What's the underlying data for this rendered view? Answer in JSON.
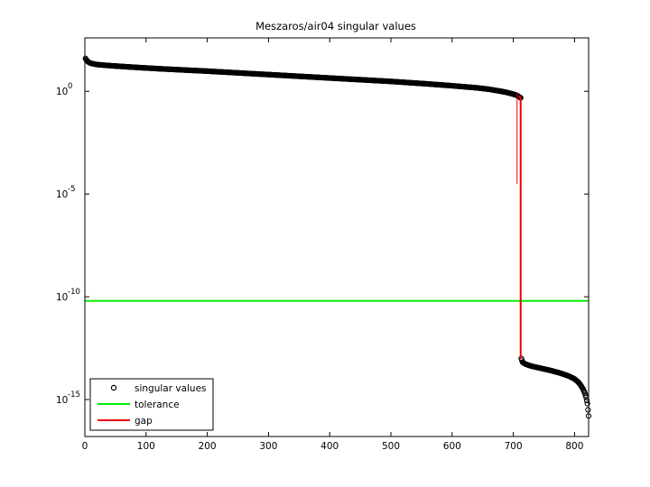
{
  "chart_data": {
    "type": "scatter",
    "title": "Meszaros/air04 singular values",
    "xlabel": "",
    "ylabel": "",
    "xscale": "linear",
    "yscale": "log",
    "xlim": [
      0,
      823
    ],
    "ylim_log10": [
      -16.8,
      2.6
    ],
    "grid": false,
    "legend_position": "bottom-left",
    "x_ticks": [
      {
        "value": 0,
        "label": "0"
      },
      {
        "value": 100,
        "label": "100"
      },
      {
        "value": 200,
        "label": "200"
      },
      {
        "value": 300,
        "label": "300"
      },
      {
        "value": 400,
        "label": "400"
      },
      {
        "value": 500,
        "label": "500"
      },
      {
        "value": 600,
        "label": "600"
      },
      {
        "value": 700,
        "label": "700"
      },
      {
        "value": 800,
        "label": "800"
      }
    ],
    "y_ticks": [
      {
        "log10": 0,
        "base": "10",
        "exp": "0"
      },
      {
        "log10": -5,
        "base": "10",
        "exp": "-5"
      },
      {
        "log10": -10,
        "base": "10",
        "exp": "-10"
      },
      {
        "log10": -15,
        "base": "10",
        "exp": "-15"
      }
    ],
    "series": [
      {
        "name": "singular values",
        "style": "markers",
        "color": "#000000",
        "x": [
          1,
          3,
          6,
          10,
          20,
          40,
          80,
          120,
          160,
          200,
          260,
          320,
          380,
          440,
          500,
          560,
          600,
          640,
          660,
          680,
          690,
          700,
          705,
          708,
          710,
          711,
          712,
          713,
          715,
          720,
          730,
          745,
          760,
          775,
          790,
          800,
          806,
          810,
          814,
          817,
          819,
          821,
          823
        ],
        "log10_values": [
          1.6,
          1.5,
          1.42,
          1.36,
          1.3,
          1.25,
          1.17,
          1.1,
          1.04,
          0.98,
          0.88,
          0.78,
          0.68,
          0.58,
          0.48,
          0.36,
          0.27,
          0.17,
          0.1,
          0.0,
          -0.06,
          -0.14,
          -0.19,
          -0.24,
          -0.28,
          -0.3,
          -0.32,
          -13.0,
          -13.18,
          -13.28,
          -13.38,
          -13.48,
          -13.58,
          -13.7,
          -13.85,
          -14.0,
          -14.15,
          -14.3,
          -14.5,
          -14.7,
          -14.9,
          -15.2,
          -15.8
        ]
      },
      {
        "name": "tolerance",
        "style": "line",
        "color": "#00ee00",
        "log10_value": -10.2
      },
      {
        "name": "gap",
        "style": "line",
        "color": "#ee0000",
        "x_upper": 712,
        "x_lower": 713,
        "log10_upper": -0.32,
        "log10_lower": -13.0
      }
    ]
  }
}
